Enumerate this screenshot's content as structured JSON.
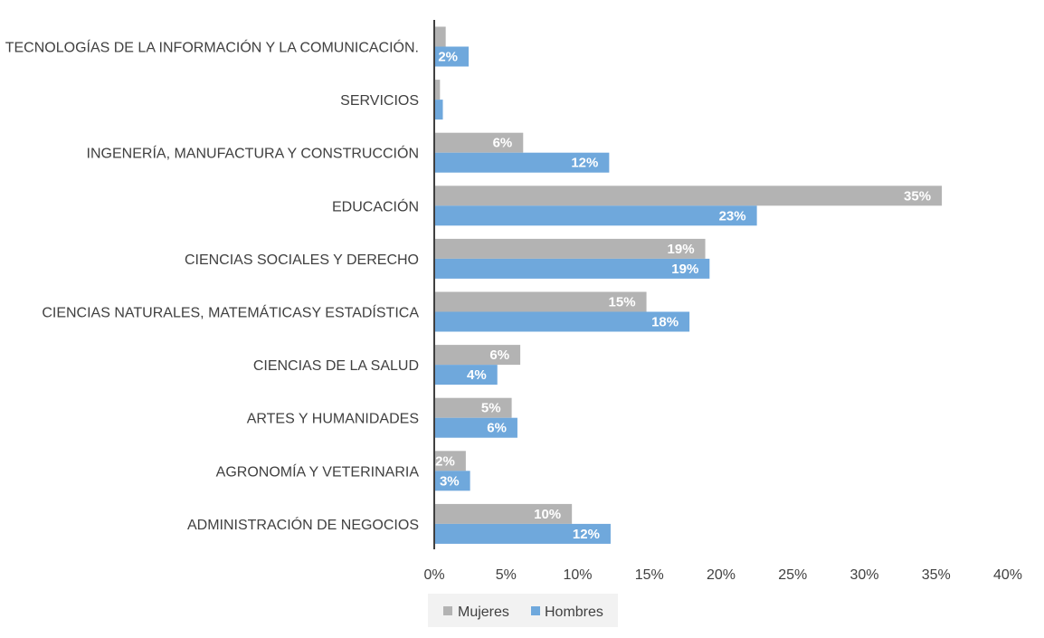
{
  "chart_data": {
    "type": "bar",
    "orientation": "horizontal",
    "categories": [
      "TECNOLOGÍAS DE LA INFORMACIÓN Y LA COMUNICACIÓN.",
      "SERVICIOS",
      "INGENERÍA, MANUFACTURA Y CONSTRUCCIÓN",
      "EDUCACIÓN",
      "CIENCIAS SOCIALES Y DERECHO",
      "CIENCIAS NATURALES, MATEMÁTICASY ESTADÍSTICA",
      "CIENCIAS DE LA SALUD",
      "ARTES Y HUMANIDADES",
      "AGRONOMÍA Y VETERINARIA",
      "ADMINISTRACIÓN DE NEGOCIOS"
    ],
    "series": [
      {
        "name": "Mujeres",
        "color": "#b3b3b3",
        "values": [
          0.8,
          0.4,
          6.2,
          35.4,
          18.9,
          14.8,
          6.0,
          5.4,
          2.2,
          9.6
        ],
        "labels": [
          "",
          "",
          "6%",
          "35%",
          "19%",
          "15%",
          "6%",
          "5%",
          "2%",
          "10%"
        ]
      },
      {
        "name": "Hombres",
        "color": "#6fa8dc",
        "values": [
          2.4,
          0.6,
          12.2,
          22.5,
          19.2,
          17.8,
          4.4,
          5.8,
          2.5,
          12.3
        ],
        "labels": [
          "2%",
          "",
          "12%",
          "23%",
          "19%",
          "18%",
          "4%",
          "6%",
          "3%",
          "12%"
        ]
      }
    ],
    "xlim": [
      0,
      40
    ],
    "xticks": [
      "0%",
      "5%",
      "10%",
      "15%",
      "20%",
      "25%",
      "30%",
      "35%",
      "40%"
    ],
    "grid": false,
    "legend_position": "bottom"
  }
}
